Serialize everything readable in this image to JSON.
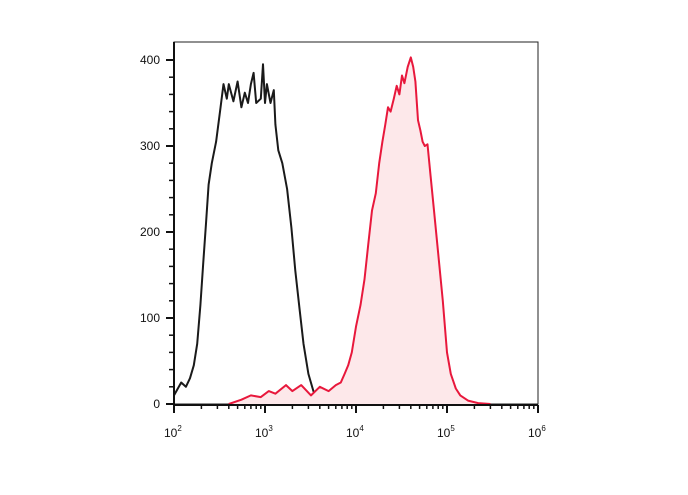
{
  "chart_data": {
    "type": "area",
    "title": "",
    "xlabel": "",
    "ylabel": "",
    "x_scale": "log",
    "xlim": [
      100,
      1000000
    ],
    "ylim": [
      0,
      410
    ],
    "grid": false,
    "legend": "none",
    "x_ticks": [
      {
        "value": 100,
        "base": "10",
        "exp": "2"
      },
      {
        "value": 1000,
        "base": "10",
        "exp": "3"
      },
      {
        "value": 10000,
        "base": "10",
        "exp": "4"
      },
      {
        "value": 100000,
        "base": "10",
        "exp": "5"
      },
      {
        "value": 1000000,
        "base": "10",
        "exp": "6"
      }
    ],
    "y_ticks": [
      {
        "value": 0,
        "label": "0"
      },
      {
        "value": 100,
        "label": "100"
      },
      {
        "value": 200,
        "label": "200"
      },
      {
        "value": 300,
        "label": "300"
      },
      {
        "value": 400,
        "label": "400"
      }
    ],
    "series": [
      {
        "color": "#1a1a1a",
        "fill": "none",
        "points": [
          [
            100,
            10
          ],
          [
            120,
            25
          ],
          [
            135,
            20
          ],
          [
            150,
            30
          ],
          [
            165,
            45
          ],
          [
            180,
            70
          ],
          [
            195,
            115
          ],
          [
            210,
            165
          ],
          [
            225,
            210
          ],
          [
            240,
            255
          ],
          [
            260,
            280
          ],
          [
            290,
            305
          ],
          [
            320,
            340
          ],
          [
            350,
            372
          ],
          [
            380,
            355
          ],
          [
            400,
            372
          ],
          [
            450,
            352
          ],
          [
            500,
            375
          ],
          [
            550,
            345
          ],
          [
            600,
            362
          ],
          [
            650,
            350
          ],
          [
            700,
            372
          ],
          [
            750,
            385
          ],
          [
            800,
            350
          ],
          [
            900,
            355
          ],
          [
            950,
            395
          ],
          [
            1000,
            350
          ],
          [
            1050,
            372
          ],
          [
            1150,
            350
          ],
          [
            1250,
            365
          ],
          [
            1300,
            325
          ],
          [
            1400,
            295
          ],
          [
            1550,
            280
          ],
          [
            1750,
            250
          ],
          [
            1950,
            205
          ],
          [
            2150,
            155
          ],
          [
            2400,
            110
          ],
          [
            2650,
            70
          ],
          [
            3000,
            35
          ],
          [
            3400,
            15
          ],
          [
            3900,
            5
          ],
          [
            4500,
            2
          ],
          [
            6000,
            1
          ],
          [
            10000,
            0
          ]
        ]
      },
      {
        "color": "#e8183c",
        "fill": "#fde8ea",
        "points": [
          [
            400,
            0
          ],
          [
            550,
            5
          ],
          [
            700,
            10
          ],
          [
            900,
            8
          ],
          [
            1100,
            15
          ],
          [
            1300,
            12
          ],
          [
            1700,
            22
          ],
          [
            2000,
            15
          ],
          [
            2500,
            22
          ],
          [
            3200,
            10
          ],
          [
            4000,
            20
          ],
          [
            5000,
            15
          ],
          [
            6000,
            22
          ],
          [
            6800,
            25
          ],
          [
            7500,
            35
          ],
          [
            8200,
            45
          ],
          [
            9000,
            60
          ],
          [
            10000,
            90
          ],
          [
            11200,
            115
          ],
          [
            12400,
            145
          ],
          [
            13600,
            185
          ],
          [
            15000,
            225
          ],
          [
            16500,
            245
          ],
          [
            18000,
            280
          ],
          [
            19500,
            305
          ],
          [
            21000,
            325
          ],
          [
            22500,
            345
          ],
          [
            24000,
            340
          ],
          [
            26000,
            355
          ],
          [
            28000,
            370
          ],
          [
            30000,
            360
          ],
          [
            32000,
            382
          ],
          [
            34000,
            373
          ],
          [
            37000,
            392
          ],
          [
            40000,
            403
          ],
          [
            42500,
            392
          ],
          [
            45000,
            375
          ],
          [
            48000,
            330
          ],
          [
            51000,
            318
          ],
          [
            54000,
            305
          ],
          [
            57000,
            300
          ],
          [
            61000,
            302
          ],
          [
            66000,
            265
          ],
          [
            72000,
            225
          ],
          [
            80000,
            175
          ],
          [
            90000,
            120
          ],
          [
            100000,
            60
          ],
          [
            110000,
            35
          ],
          [
            125000,
            18
          ],
          [
            140000,
            10
          ],
          [
            170000,
            4
          ],
          [
            220000,
            1
          ],
          [
            300000,
            0
          ]
        ]
      }
    ]
  }
}
